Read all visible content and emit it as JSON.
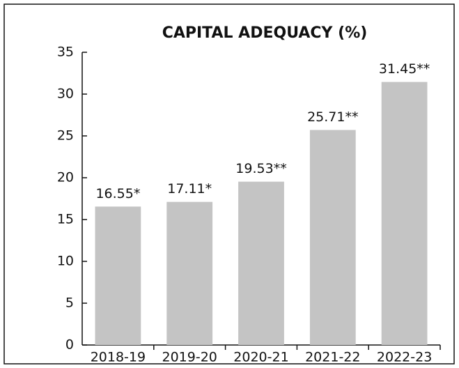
{
  "chart_data": {
    "type": "bar",
    "title": "CAPITAL ADEQUACY (%)",
    "categories": [
      "2018-19",
      "2019-20",
      "2020-21",
      "2021-22",
      "2022-23"
    ],
    "values": [
      16.55,
      17.11,
      19.53,
      25.71,
      31.45
    ],
    "value_labels": [
      "16.55*",
      "17.11*",
      "19.53**",
      "25.71**",
      "31.45**"
    ],
    "color": "#c4c4c4",
    "ylim": [
      0,
      35
    ],
    "yticks": [
      0,
      5,
      10,
      15,
      20,
      25,
      30,
      35
    ],
    "grid": false
  }
}
